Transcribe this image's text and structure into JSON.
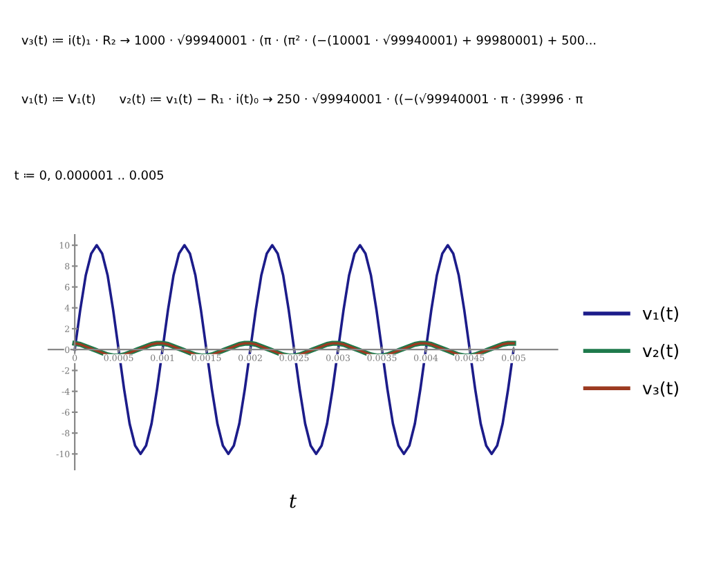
{
  "chart_data": {
    "type": "line",
    "xlabel": "t",
    "annotations": [
      "v₃(t) ≔ i(t)₁ · R₂ → 1000 · √99940001 · (π · (π² · (−(10001 · √99940001) + 99980001) + 500...",
      "v₁(t) ≔ V₁(t)      v₂(t) ≔ v₁(t) − R₁ · i(t)₀ → 250 · √99940001 · ((−(√99940001 · π · (39996 · π",
      "t ≔ 0, 0.000001 .. 0.005"
    ],
    "x": [
      0,
      6.25e-05,
      0.000125,
      0.0001875,
      0.00025,
      0.0003125,
      0.000375,
      0.0004375,
      0.0005,
      0.0005625,
      0.000625,
      0.0006875,
      0.00075,
      0.0008125,
      0.000875,
      0.0009375,
      0.001,
      0.0010625,
      0.001125,
      0.0011875,
      0.00125,
      0.0013125,
      0.001375,
      0.0014375,
      0.0015,
      0.0015625,
      0.001625,
      0.0016875,
      0.00175,
      0.0018125,
      0.001875,
      0.0019375,
      0.002,
      0.0020625,
      0.002125,
      0.0021875,
      0.00225,
      0.0023125,
      0.002375,
      0.0024375,
      0.0025,
      0.0025625,
      0.002625,
      0.0026875,
      0.00275,
      0.0028125,
      0.002875,
      0.0029375,
      0.003,
      0.0030625,
      0.003125,
      0.0031875,
      0.00325,
      0.0033125,
      0.003375,
      0.0034375,
      0.0035,
      0.0035625,
      0.003625,
      0.0036875,
      0.00375,
      0.0038125,
      0.003875,
      0.0039375,
      0.004,
      0.0040625,
      0.004125,
      0.0041875,
      0.00425,
      0.0043125,
      0.004375,
      0.0044375,
      0.0045,
      0.0045625,
      0.004625,
      0.0046875,
      0.00475,
      0.0048125,
      0.004875,
      0.0049375,
      0.005
    ],
    "series": [
      {
        "name": "v₁(t)",
        "color": "#1c1c8a",
        "values": [
          0,
          3.8,
          7.1,
          9.2,
          10,
          9.2,
          7.1,
          3.8,
          0,
          -3.8,
          -7.1,
          -9.2,
          -10,
          -9.2,
          -7.1,
          -3.8,
          0,
          3.8,
          7.1,
          9.2,
          10,
          9.2,
          7.1,
          3.8,
          0,
          -3.8,
          -7.1,
          -9.2,
          -10,
          -9.2,
          -7.1,
          -3.8,
          0,
          3.8,
          7.1,
          9.2,
          10,
          9.2,
          7.1,
          3.8,
          0,
          -3.8,
          -7.1,
          -9.2,
          -10,
          -9.2,
          -7.1,
          -3.8,
          0,
          3.8,
          7.1,
          9.2,
          10,
          9.2,
          7.1,
          3.8,
          0,
          -3.8,
          -7.1,
          -9.2,
          -10,
          -9.2,
          -7.1,
          -3.8,
          0,
          3.8,
          7.1,
          9.2,
          10,
          9.2,
          7.1,
          3.8,
          0,
          -3.8,
          -7.1,
          -9.2,
          -10,
          -9.2,
          -7.1,
          -3.8,
          0
        ]
      },
      {
        "name": "v₂(t)",
        "color": "#1f7a4c",
        "values": [
          0.6,
          0.5,
          0.3,
          0.1,
          -0.1,
          -0.3,
          -0.5,
          -0.6,
          -0.6,
          -0.5,
          -0.3,
          -0.1,
          0.1,
          0.3,
          0.5,
          0.6,
          0.6,
          0.5,
          0.3,
          0.1,
          -0.1,
          -0.3,
          -0.5,
          -0.6,
          -0.6,
          -0.5,
          -0.3,
          -0.1,
          0.1,
          0.3,
          0.5,
          0.6,
          0.6,
          0.5,
          0.3,
          0.1,
          -0.1,
          -0.3,
          -0.5,
          -0.6,
          -0.6,
          -0.5,
          -0.3,
          -0.1,
          0.1,
          0.3,
          0.5,
          0.6,
          0.6,
          0.5,
          0.3,
          0.1,
          -0.1,
          -0.3,
          -0.5,
          -0.6,
          -0.6,
          -0.5,
          -0.3,
          -0.1,
          0.1,
          0.3,
          0.5,
          0.6,
          0.6,
          0.5,
          0.3,
          0.1,
          -0.1,
          -0.3,
          -0.5,
          -0.6,
          -0.6,
          -0.5,
          -0.3,
          -0.1,
          0.1,
          0.3,
          0.5,
          0.6,
          0.6
        ]
      },
      {
        "name": "v₃(t)",
        "color": "#9c3a20",
        "values": [
          0.6,
          0.5,
          0.3,
          0.1,
          -0.1,
          -0.3,
          -0.5,
          -0.6,
          -0.6,
          -0.5,
          -0.3,
          -0.1,
          0.1,
          0.3,
          0.5,
          0.6,
          0.6,
          0.5,
          0.3,
          0.1,
          -0.1,
          -0.3,
          -0.5,
          -0.6,
          -0.6,
          -0.5,
          -0.3,
          -0.1,
          0.1,
          0.3,
          0.5,
          0.6,
          0.6,
          0.5,
          0.3,
          0.1,
          -0.1,
          -0.3,
          -0.5,
          -0.6,
          -0.6,
          -0.5,
          -0.3,
          -0.1,
          0.1,
          0.3,
          0.5,
          0.6,
          0.6,
          0.5,
          0.3,
          0.1,
          -0.1,
          -0.3,
          -0.5,
          -0.6,
          -0.6,
          -0.5,
          -0.3,
          -0.1,
          0.1,
          0.3,
          0.5,
          0.6,
          0.6,
          0.5,
          0.3,
          0.1,
          -0.1,
          -0.3,
          -0.5,
          -0.6,
          -0.6,
          -0.5,
          -0.3,
          -0.1,
          0.1,
          0.3,
          0.5,
          0.6,
          0.6
        ]
      }
    ],
    "xlim": [
      -0.0003,
      0.0055
    ],
    "xticks": [
      0,
      0.0005,
      0.001,
      0.0015,
      0.002,
      0.0025,
      0.003,
      0.0035,
      0.004,
      0.0045,
      0.005
    ],
    "ylim": [
      -11.5,
      11
    ],
    "yticks": [
      -10,
      -8,
      -6,
      -4,
      -2,
      0,
      2,
      4,
      6,
      8,
      10
    ],
    "grid": false,
    "legend": "right",
    "line_style": "solid",
    "marker": "none"
  }
}
